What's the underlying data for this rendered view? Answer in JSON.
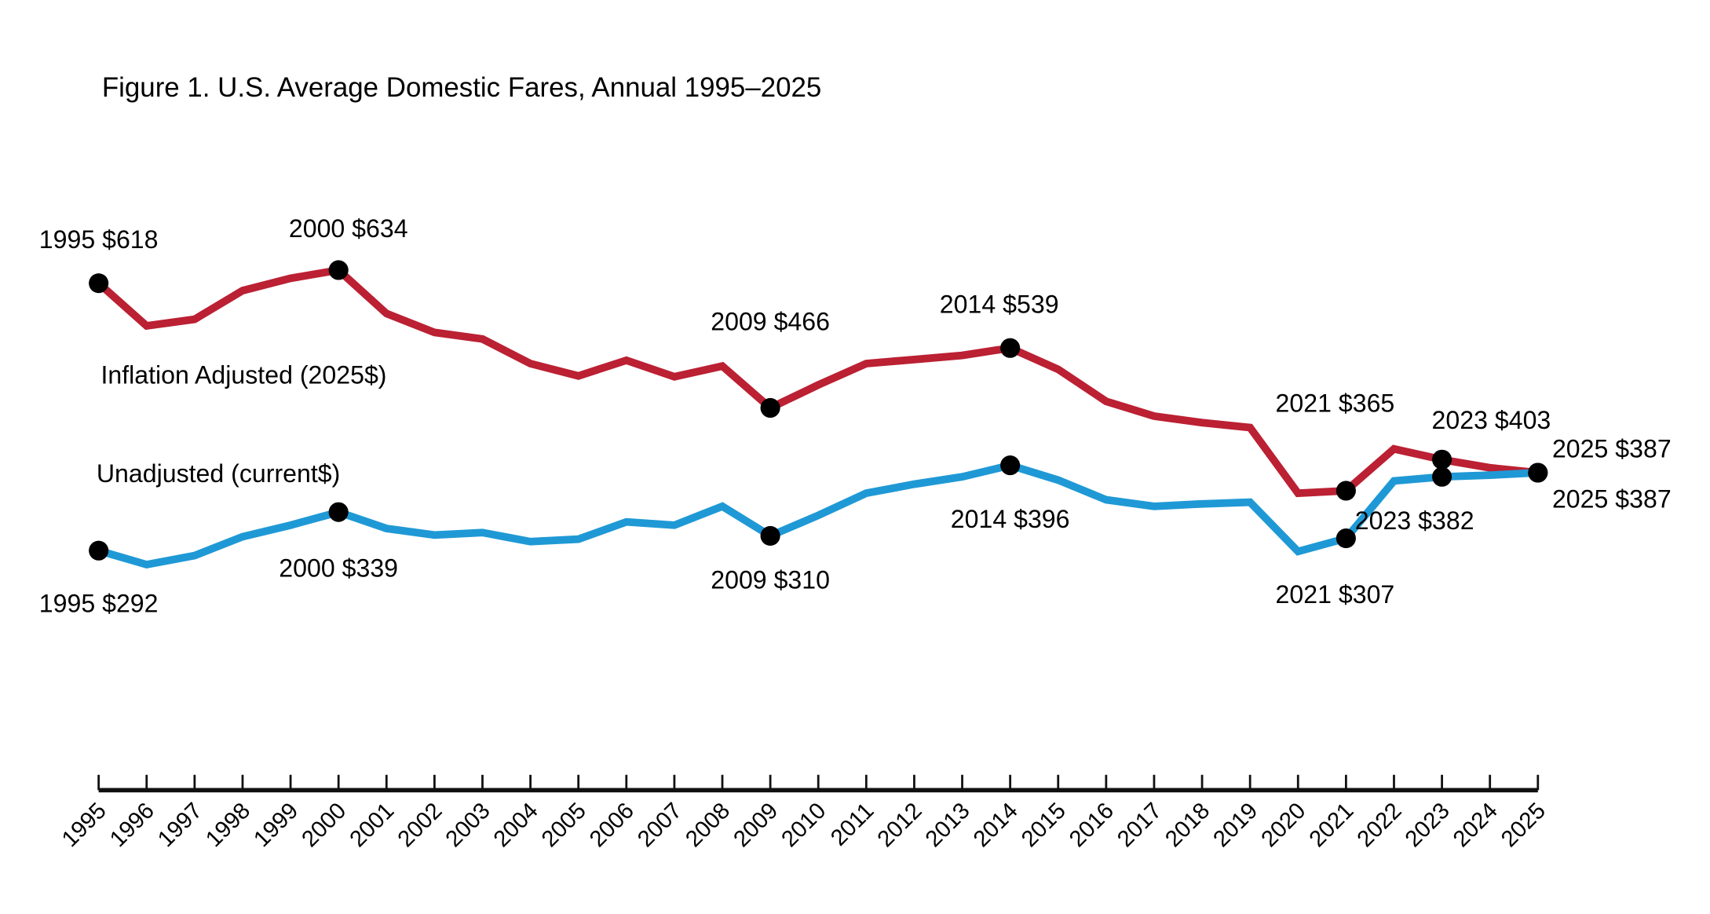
{
  "chart_data": {
    "type": "line",
    "title": "Figure 1. U.S. Average Domestic Fares, Annual 1995–2025",
    "xlabel": "",
    "ylabel": "",
    "ylim": [
      0,
      840
    ],
    "grid": false,
    "legend": "inline labels",
    "x": [
      1995,
      1996,
      1997,
      1998,
      1999,
      2000,
      2001,
      2002,
      2003,
      2004,
      2005,
      2006,
      2007,
      2008,
      2009,
      2010,
      2011,
      2012,
      2013,
      2014,
      2015,
      2016,
      2017,
      2018,
      2019,
      2020,
      2021,
      2022,
      2023,
      2024,
      2025
    ],
    "x_tick_labels": [
      "1995",
      "1996",
      "1997",
      "1998",
      "1999",
      "2000",
      "2001",
      "2002",
      "2003",
      "2004",
      "2005",
      "2006",
      "2007",
      "2008",
      "2009",
      "2010",
      "2011",
      "2012",
      "2013",
      "2014",
      "2015",
      "2016",
      "2017",
      "2018",
      "2019",
      "2020",
      "2021",
      "2022",
      "2023",
      "2024",
      "2025"
    ],
    "series": [
      {
        "name": "Inflation Adjusted (2025$)",
        "color": "#BB2033",
        "values": [
          618,
          566,
          574,
          609,
          624,
          634,
          581,
          558,
          550,
          520,
          505,
          524,
          504,
          517,
          466,
          494,
          520,
          525,
          530,
          539,
          513,
          474,
          456,
          448,
          442,
          362,
          365,
          416,
          403,
          393,
          387
        ],
        "annotations": [
          {
            "year": 1995,
            "label": "1995 $618"
          },
          {
            "year": 2000,
            "label": "2000 $634"
          },
          {
            "year": 2009,
            "label": "2009 $466"
          },
          {
            "year": 2014,
            "label": "2014 $539"
          },
          {
            "year": 2021,
            "label": "2021 $365"
          },
          {
            "year": 2023,
            "label": "2023 $403"
          },
          {
            "year": 2025,
            "label": "2025 $387"
          }
        ]
      },
      {
        "name": "Unadjusted (current$)",
        "color": "#1F99D5",
        "values": [
          292,
          275,
          286,
          309,
          323,
          339,
          319,
          311,
          314,
          303,
          306,
          327,
          323,
          346,
          310,
          335,
          362,
          373,
          382,
          396,
          378,
          354,
          346,
          349,
          351,
          291,
          307,
          377,
          382,
          384,
          387
        ],
        "annotations": [
          {
            "year": 1995,
            "label": "1995 $292"
          },
          {
            "year": 2000,
            "label": "2000 $339"
          },
          {
            "year": 2009,
            "label": "2009 $310"
          },
          {
            "year": 2014,
            "label": "2014 $396"
          },
          {
            "year": 2021,
            "label": "2021 $307"
          },
          {
            "year": 2023,
            "label": "2023 $382"
          },
          {
            "year": 2025,
            "label": "2025 $387"
          }
        ]
      }
    ]
  }
}
